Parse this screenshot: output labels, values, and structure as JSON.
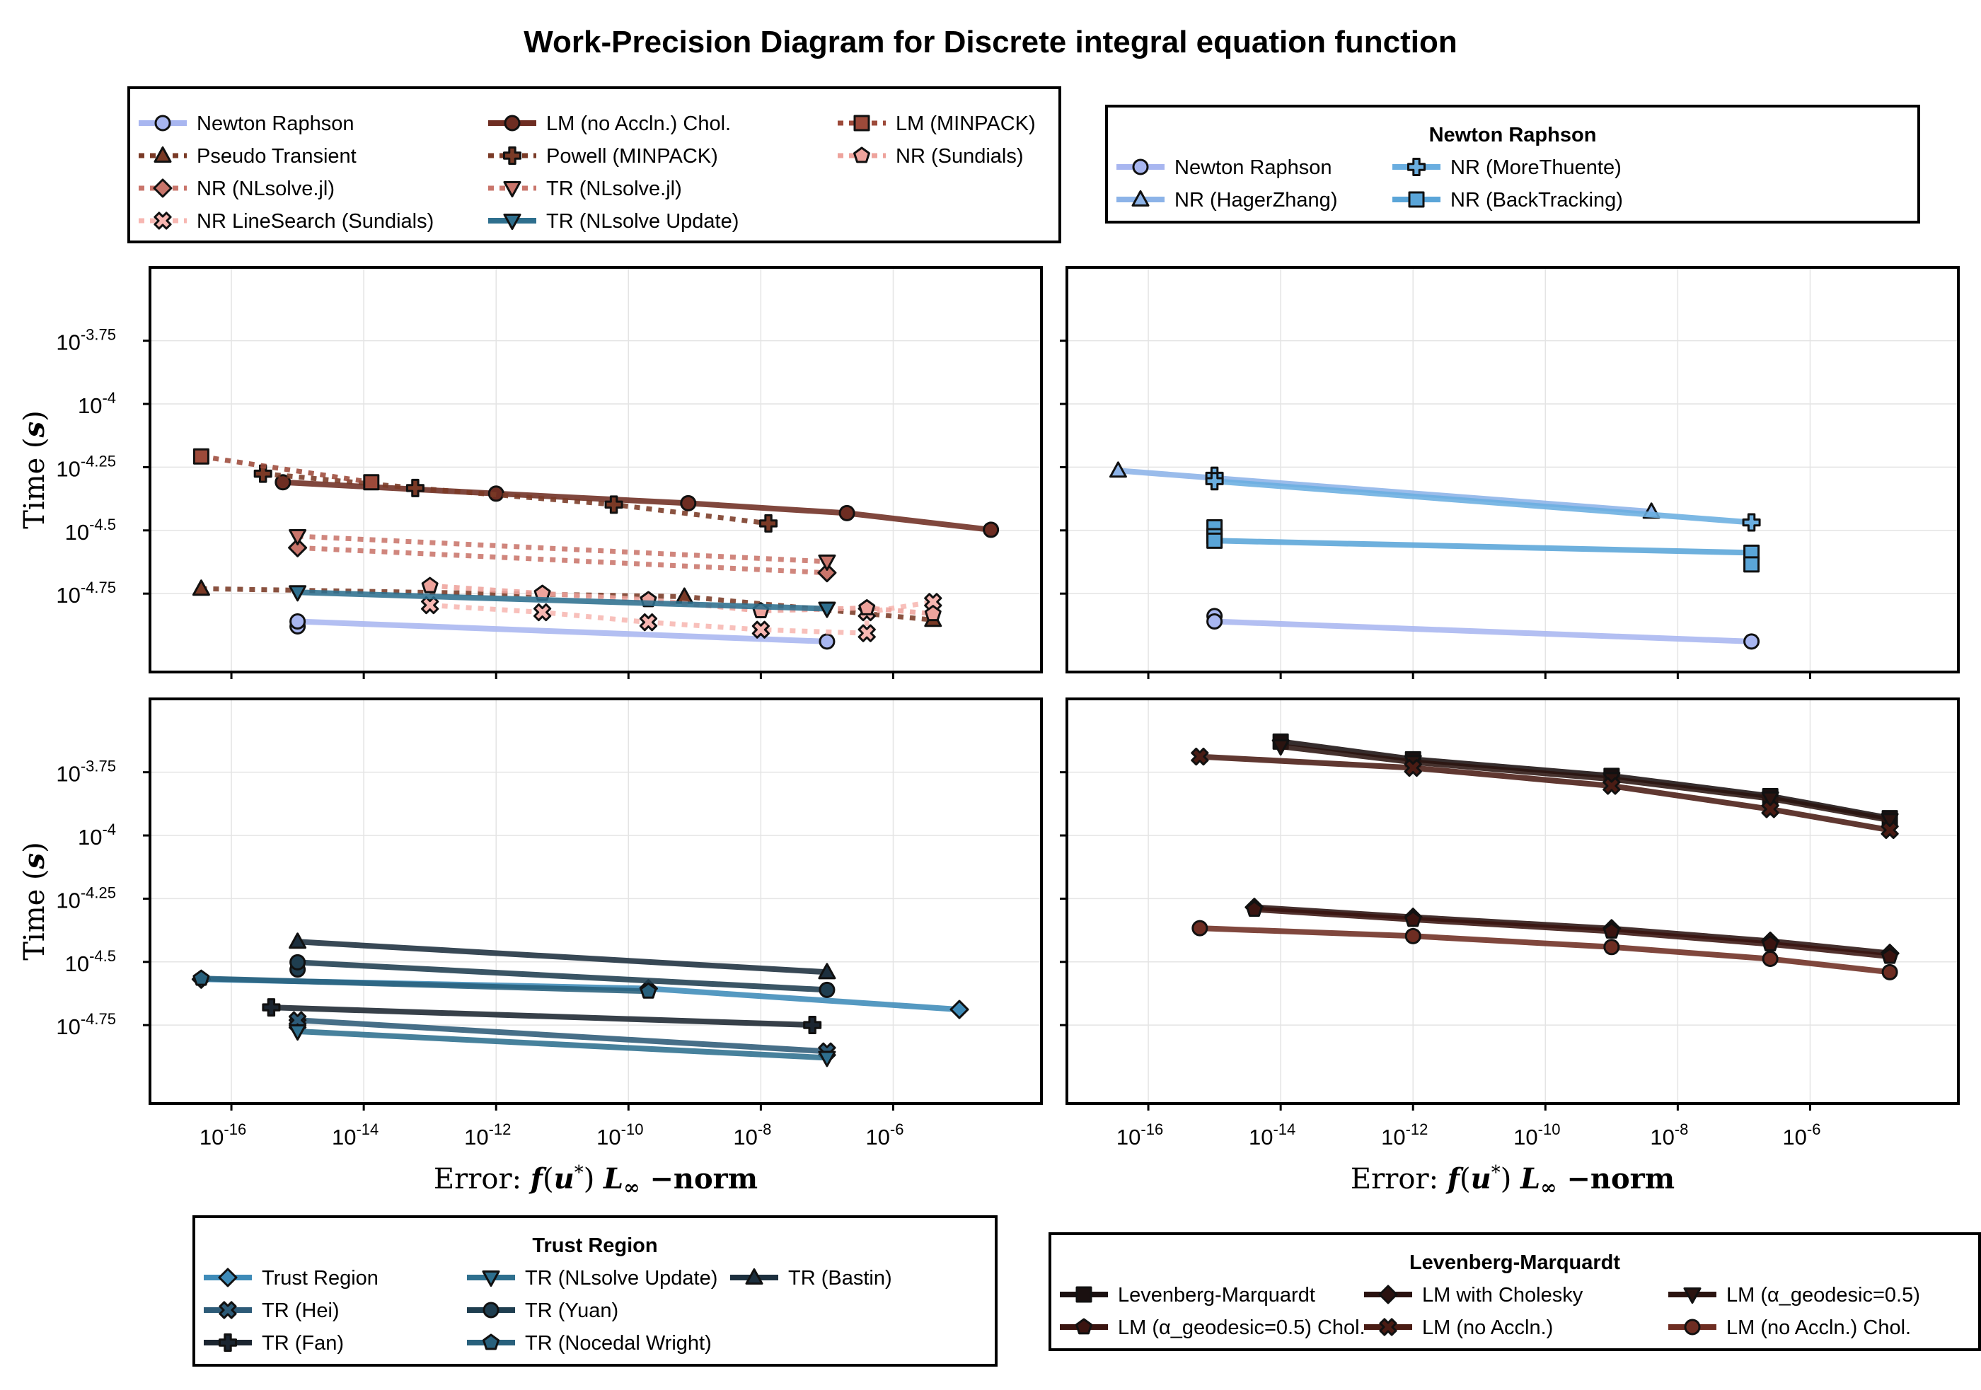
{
  "title": "Work-Precision Diagram for Discrete integral equation function",
  "axes": {
    "xlabel": "Error: f(u*) L∞−norm",
    "xlabel_parts": {
      "pre": "Error: ",
      "f": "f",
      "u": "u",
      "star": "*",
      "L": "L",
      "inf": "∞",
      "norm": "−norm"
    },
    "ylabel": "Time (s)",
    "ylabel_parts": {
      "pre": "Time ",
      "s": "s"
    },
    "x_scale": "log10",
    "y_scale": "log10",
    "x_ticks": [
      {
        "exp": -16,
        "base": "10",
        "label": "-16"
      },
      {
        "exp": -14,
        "base": "10",
        "label": "-14"
      },
      {
        "exp": -12,
        "base": "10",
        "label": "-12"
      },
      {
        "exp": -10,
        "base": "10",
        "label": "-10"
      },
      {
        "exp": -8,
        "base": "10",
        "label": "-8"
      },
      {
        "exp": -6,
        "base": "10",
        "label": "-6"
      }
    ],
    "y_ticks": [
      {
        "exp": -3.75,
        "base": "10",
        "label": "-3.75"
      },
      {
        "exp": -4,
        "base": "10",
        "label": "-4"
      },
      {
        "exp": -4.25,
        "base": "10",
        "label": "-4.25"
      },
      {
        "exp": -4.5,
        "base": "10",
        "label": "-4.5"
      },
      {
        "exp": -4.75,
        "base": "10",
        "label": "-4.75"
      }
    ],
    "x_range_log10": [
      -17.23,
      -3.76
    ],
    "y_range_log10": [
      -5.06,
      -3.46
    ],
    "grid": true
  },
  "legends": {
    "all": {
      "placement": "top-left",
      "items": [
        {
          "label": "Newton Raphson",
          "color": "#a8b6f0",
          "marker": "circle",
          "style": "solid"
        },
        {
          "label": "Pseudo Transient",
          "color": "#7a3a26",
          "marker": "triangle",
          "style": "dotted"
        },
        {
          "label": "NR (NLsolve.jl)",
          "color": "#c9756b",
          "marker": "diamond",
          "style": "dotted"
        },
        {
          "label": "NR LineSearch (Sundials)",
          "color": "#f7b7b2",
          "marker": "xcross",
          "style": "dotted"
        },
        {
          "label": "LM (no Accln.) Chol.",
          "color": "#6e2d22",
          "marker": "circle",
          "style": "solid"
        },
        {
          "label": "Powell (MINPACK)",
          "color": "#7a3a26",
          "marker": "cross",
          "style": "dotted"
        },
        {
          "label": "TR (NLsolve.jl)",
          "color": "#c9756b",
          "marker": "dtriangle",
          "style": "dotted"
        },
        {
          "label": "TR (NLsolve Update)",
          "color": "#2e6f8e",
          "marker": "dtriangle",
          "style": "solid"
        },
        {
          "label": "LM (MINPACK)",
          "color": "#9d4a3a",
          "marker": "rect",
          "style": "dotted"
        },
        {
          "label": "NR (Sundials)",
          "color": "#eea39c",
          "marker": "pentagon",
          "style": "dotted"
        }
      ]
    },
    "newton": {
      "title": "Newton Raphson",
      "placement": "top-right",
      "items": [
        {
          "label": "Newton Raphson",
          "color": "#a8b6f0",
          "marker": "circle"
        },
        {
          "label": "NR (HagerZhang)",
          "color": "#8cb3e8",
          "marker": "triangle"
        },
        {
          "label": "NR (MoreThuente)",
          "color": "#6aaee0",
          "marker": "cross"
        },
        {
          "label": "NR (BackTracking)",
          "color": "#5aa5d8",
          "marker": "rect"
        }
      ]
    },
    "trust": {
      "title": "Trust Region",
      "placement": "bottom-left",
      "items": [
        {
          "label": "Trust Region",
          "color": "#3e8bb8",
          "marker": "diamond"
        },
        {
          "label": "TR (Hei)",
          "color": "#2d5b78",
          "marker": "xcross"
        },
        {
          "label": "TR (Fan)",
          "color": "#1b2530",
          "marker": "cross"
        },
        {
          "label": "TR (NLsolve Update)",
          "color": "#2e6f8e",
          "marker": "dtriangle"
        },
        {
          "label": "TR (Yuan)",
          "color": "#1f3e50",
          "marker": "circle"
        },
        {
          "label": "TR (Nocedal Wright)",
          "color": "#28607c",
          "marker": "pentagon"
        },
        {
          "label": "TR (Bastin)",
          "color": "#1c2f3e",
          "marker": "triangle"
        }
      ]
    },
    "lm": {
      "title": "Levenberg-Marquardt",
      "placement": "bottom-right",
      "items": [
        {
          "label": "Levenberg-Marquardt",
          "color": "#1a1010",
          "marker": "rect"
        },
        {
          "label": "LM (α_geodesic=0.5) Chol.",
          "color": "#3a1410",
          "marker": "pentagon"
        },
        {
          "label": "LM with Cholesky",
          "color": "#2a1210",
          "marker": "diamond"
        },
        {
          "label": "LM (no Accln.)",
          "color": "#4a1c14",
          "marker": "xcross"
        },
        {
          "label": "LM (α_geodesic=0.5)",
          "color": "#2b1410",
          "marker": "dtriangle"
        },
        {
          "label": "LM (no Accln.) Chol.",
          "color": "#6e2d22",
          "marker": "circle"
        }
      ]
    }
  },
  "chart_data": [
    {
      "type": "line",
      "panel": "top-left",
      "x_scale": "log10",
      "y_scale": "log10",
      "series": [
        {
          "name": "Newton Raphson",
          "color": "#a8b6f0",
          "marker": "circle",
          "style": "solid",
          "points": [
            [
              1e-15,
              1.32e-05
            ],
            [
              1e-15,
              1.38e-05
            ],
            [
              1e-07,
              1.15e-05
            ]
          ]
        },
        {
          "name": "Pseudo Transient",
          "color": "#7a3a26",
          "marker": "triangle",
          "style": "dotted",
          "points": [
            [
              3.5e-17,
              1.86e-05
            ],
            [
              7e-10,
              1.73e-05
            ],
            [
              4e-06,
              1.4e-05
            ]
          ]
        },
        {
          "name": "NR (NLsolve.jl)",
          "color": "#c9756b",
          "marker": "diamond",
          "style": "dotted",
          "points": [
            [
              1e-15,
              2.7e-05
            ],
            [
              1e-07,
              2.15e-05
            ]
          ]
        },
        {
          "name": "NR LineSearch (Sundials)",
          "color": "#f7b7b2",
          "marker": "xcross",
          "style": "dotted",
          "points": [
            [
              1e-13,
              1.6e-05
            ],
            [
              5e-12,
              1.5e-05
            ],
            [
              2e-10,
              1.37e-05
            ],
            [
              1e-08,
              1.28e-05
            ],
            [
              4e-07,
              1.24e-05
            ],
            [
              4e-07,
              1.5e-05
            ],
            [
              4e-06,
              1.65e-05
            ]
          ]
        },
        {
          "name": "NR (Sundials)",
          "color": "#eea39c",
          "marker": "pentagon",
          "style": "dotted",
          "points": [
            [
              1e-13,
              1.91e-05
            ],
            [
              5e-12,
              1.78e-05
            ],
            [
              2e-10,
              1.68e-05
            ],
            [
              1e-08,
              1.52e-05
            ],
            [
              4e-07,
              1.56e-05
            ],
            [
              4e-06,
              1.48e-05
            ]
          ]
        },
        {
          "name": "LM (no Accln.) Chol.",
          "color": "#6e2d22",
          "marker": "circle",
          "style": "solid",
          "points": [
            [
              6e-16,
              4.9e-05
            ],
            [
              1e-12,
              4.42e-05
            ],
            [
              8e-10,
              4.05e-05
            ],
            [
              2e-07,
              3.7e-05
            ],
            [
              3e-05,
              3.18e-05
            ]
          ]
        },
        {
          "name": "Powell (MINPACK)",
          "color": "#7a3a26",
          "marker": "cross",
          "style": "dotted",
          "points": [
            [
              3e-16,
              5.3e-05
            ],
            [
              6e-14,
              4.65e-05
            ],
            [
              6e-11,
              4e-05
            ],
            [
              1.3e-08,
              3.37e-05
            ]
          ]
        },
        {
          "name": "TR (NLsolve.jl)",
          "color": "#c9756b",
          "marker": "dtriangle",
          "style": "dotted",
          "points": [
            [
              1e-15,
              3e-05
            ],
            [
              1e-07,
              2.38e-05
            ]
          ]
        },
        {
          "name": "TR (NLsolve Update)",
          "color": "#2e6f8e",
          "marker": "dtriangle",
          "style": "solid",
          "points": [
            [
              1e-15,
              1.8e-05
            ],
            [
              1e-07,
              1.55e-05
            ]
          ]
        },
        {
          "name": "LM (MINPACK)",
          "color": "#9d4a3a",
          "marker": "rect",
          "style": "dotted",
          "points": [
            [
              3.5e-17,
              6.2e-05
            ],
            [
              1.3e-14,
              4.9e-05
            ]
          ]
        }
      ]
    },
    {
      "type": "line",
      "panel": "top-right",
      "x_scale": "log10",
      "y_scale": "log10",
      "series": [
        {
          "name": "Newton Raphson",
          "color": "#a8b6f0",
          "marker": "circle",
          "style": "solid",
          "points": [
            [
              1e-15,
              1.45e-05
            ],
            [
              1e-15,
              1.38e-05
            ],
            [
              1.3e-07,
              1.15e-05
            ]
          ]
        },
        {
          "name": "NR (HagerZhang)",
          "color": "#8cb3e8",
          "marker": "triangle",
          "style": "solid",
          "points": [
            [
              3.5e-17,
              5.45e-05
            ],
            [
              4e-09,
              3.75e-05
            ]
          ]
        },
        {
          "name": "NR (MoreThuente)",
          "color": "#6aaee0",
          "marker": "cross",
          "style": "solid",
          "points": [
            [
              1e-15,
              5.2e-05
            ],
            [
              1e-15,
              4.95e-05
            ],
            [
              1.3e-07,
              3.4e-05
            ]
          ]
        },
        {
          "name": "NR (BackTracking)",
          "color": "#5aa5d8",
          "marker": "rect",
          "style": "solid",
          "points": [
            [
              1e-15,
              3.25e-05
            ],
            [
              1e-15,
              3e-05
            ],
            [
              1e-15,
              2.88e-05
            ],
            [
              1.3e-07,
              2.58e-05
            ],
            [
              1.3e-07,
              2.32e-05
            ]
          ]
        }
      ]
    },
    {
      "type": "line",
      "panel": "bottom-left",
      "x_scale": "log10",
      "y_scale": "log10",
      "series": [
        {
          "name": "Trust Region",
          "color": "#3e8bb8",
          "marker": "diamond",
          "style": "solid",
          "points": [
            [
              3.5e-17,
              2.7e-05
            ],
            [
              2e-10,
              2.48e-05
            ],
            [
              1e-05,
              2.05e-05
            ]
          ]
        },
        {
          "name": "TR (Hei)",
          "color": "#2d5b78",
          "marker": "xcross",
          "style": "solid",
          "points": [
            [
              1e-15,
              1.8e-05
            ],
            [
              1e-15,
              1.86e-05
            ],
            [
              1e-07,
              1.4e-05
            ]
          ]
        },
        {
          "name": "TR (Fan)",
          "color": "#1b2530",
          "marker": "cross",
          "style": "solid",
          "points": [
            [
              4e-16,
              2.09e-05
            ],
            [
              6e-08,
              1.78e-05
            ]
          ]
        },
        {
          "name": "TR (NLsolve Update)",
          "color": "#2e6f8e",
          "marker": "dtriangle",
          "style": "solid",
          "points": [
            [
              1e-15,
              1.68e-05
            ],
            [
              1e-07,
              1.32e-05
            ]
          ]
        },
        {
          "name": "TR (Yuan)",
          "color": "#1f3e50",
          "marker": "circle",
          "style": "solid",
          "points": [
            [
              1e-15,
              2.95e-05
            ],
            [
              1e-15,
              3.15e-05
            ],
            [
              1e-07,
              2.45e-05
            ]
          ]
        },
        {
          "name": "TR (Nocedal Wright)",
          "color": "#28607c",
          "marker": "pentagon",
          "style": "solid",
          "points": [
            [
              3.5e-17,
              2.72e-05
            ],
            [
              2e-10,
              2.42e-05
            ]
          ]
        },
        {
          "name": "TR (Bastin)",
          "color": "#1c2f3e",
          "marker": "triangle",
          "style": "solid",
          "points": [
            [
              1e-15,
              3.8e-05
            ],
            [
              1e-07,
              2.88e-05
            ]
          ]
        }
      ]
    },
    {
      "type": "line",
      "panel": "bottom-right",
      "x_scale": "log10",
      "y_scale": "log10",
      "series": [
        {
          "name": "Levenberg-Marquardt",
          "color": "#1a1010",
          "marker": "rect",
          "style": "solid",
          "points": [
            [
              1e-14,
              0.000235
            ],
            [
              1e-12,
              0.0002
            ],
            [
              1e-09,
              0.000172
            ],
            [
              2.5e-07,
              0.000143
            ],
            [
              1.6e-05,
              0.000117
            ]
          ]
        },
        {
          "name": "LM (α_geodesic=0.5)",
          "color": "#2b1410",
          "marker": "dtriangle",
          "style": "solid",
          "points": [
            [
              1e-14,
              0.000225
            ],
            [
              1e-12,
              0.000195
            ],
            [
              1e-09,
              0.000167
            ],
            [
              2.5e-07,
              0.00014
            ],
            [
              1.6e-05,
              0.000115
            ]
          ]
        },
        {
          "name": "LM (no Accln.)",
          "color": "#4a1c14",
          "marker": "xcross",
          "style": "solid",
          "points": [
            [
              6e-16,
              0.000205
            ],
            [
              1e-12,
              0.000185
            ],
            [
              1e-09,
              0.000157
            ],
            [
              2.5e-07,
              0.000127
            ],
            [
              1.6e-05,
              0.000105
            ]
          ]
        },
        {
          "name": "LM with Cholesky",
          "color": "#2a1210",
          "marker": "diamond",
          "style": "solid",
          "points": [
            [
              4e-15,
              5.2e-05
            ],
            [
              1e-12,
              4.75e-05
            ],
            [
              1e-09,
              4.28e-05
            ],
            [
              2.5e-07,
              3.82e-05
            ],
            [
              1.6e-05,
              3.42e-05
            ]
          ]
        },
        {
          "name": "LM (α_geodesic=0.5) Chol.",
          "color": "#3a1410",
          "marker": "pentagon",
          "style": "solid",
          "points": [
            [
              4e-15,
              5.1e-05
            ],
            [
              1e-12,
              4.65e-05
            ],
            [
              1e-09,
              4.18e-05
            ],
            [
              2.5e-07,
              3.72e-05
            ],
            [
              1.6e-05,
              3.32e-05
            ]
          ]
        },
        {
          "name": "LM (no Accln.) Chol.",
          "color": "#6e2d22",
          "marker": "circle",
          "style": "solid",
          "points": [
            [
              6e-16,
              4.3e-05
            ],
            [
              1e-12,
              4e-05
            ],
            [
              1e-09,
              3.62e-05
            ],
            [
              2.5e-07,
              3.25e-05
            ],
            [
              1.6e-05,
              2.88e-05
            ]
          ]
        }
      ]
    }
  ]
}
